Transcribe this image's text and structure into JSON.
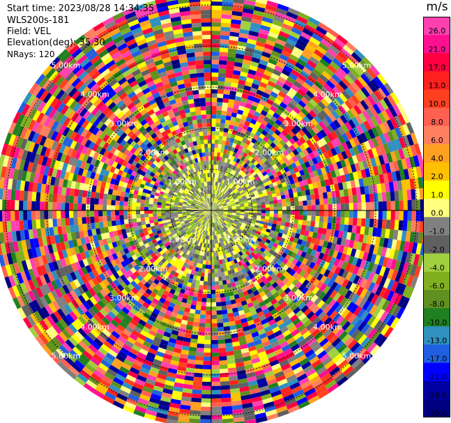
{
  "header": {
    "start_time": "Start time: 2023/08/28 14:34:35",
    "instrument": "WLS200s-181",
    "field": "Field: VEL",
    "elevation": "Elevation(deg): 35.30",
    "nrays": "NRays: 120"
  },
  "chart_data": {
    "type": "heatmap",
    "projection": "polar-ppi",
    "field": "VEL",
    "units": "m/s",
    "elevation_deg": 35.3,
    "n_rays": 120,
    "range_ring_labels": [
      "1.00km",
      "2.00km",
      "3.00km",
      "4.00km",
      "5.00km"
    ],
    "colorbar": {
      "label": "m/s",
      "ticks": [
        "26.0",
        "21.0",
        "17.0",
        "13.0",
        "10.0",
        "8.0",
        "6.0",
        "4.0",
        "2.0",
        "1.0",
        "0.0",
        "-1.0",
        "-2.0",
        "-4.0",
        "-6.0",
        "-8.0",
        "-10.0",
        "-13.0",
        "-17.0",
        "-21.0",
        "-26.0",
        "-30.0"
      ],
      "colors": [
        "#ff40b0",
        "#ff1090",
        "#ff0040",
        "#ff2020",
        "#ff4020",
        "#ff6050",
        "#ff8060",
        "#ffa020",
        "#ffc000",
        "#ffff00",
        "#ffff80",
        "#808080",
        "#606060",
        "#a0d040",
        "#80b020",
        "#609020",
        "#208020",
        "#3090c0",
        "#2060e0",
        "#0000ff",
        "#0000a0",
        "#000080"
      ]
    },
    "noise_ring_km": 1.3
  }
}
